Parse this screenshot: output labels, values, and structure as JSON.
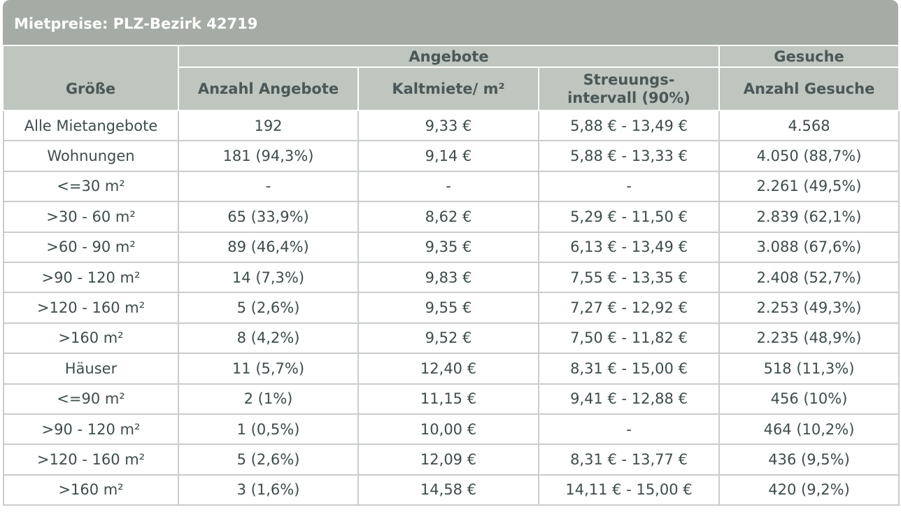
{
  "title": "Mietpreise: PLZ-Bezirk 42719",
  "header": {
    "size": "Größe",
    "groups": [
      "Angebote",
      "Gesuche"
    ],
    "columns": [
      "Anzahl Angebote",
      "Kaltmiete/ m²",
      "Streuungs- intervall (90%)",
      "Anzahl Gesuche"
    ]
  },
  "table": {
    "rows": [
      [
        "Alle Mietangebote",
        "192",
        "9,33 €",
        "5,88 € - 13,49 €",
        "4.568"
      ],
      [
        "Wohnungen",
        "181 (94,3%)",
        "9,14 €",
        "5,88 € - 13,33 €",
        "4.050 (88,7%)"
      ],
      [
        "<=30 m²",
        "-",
        "-",
        "-",
        "2.261 (49,5%)"
      ],
      [
        ">30 - 60 m²",
        "65 (33,9%)",
        "8,62 €",
        "5,29 € - 11,50 €",
        "2.839 (62,1%)"
      ],
      [
        ">60 - 90 m²",
        "89 (46,4%)",
        "9,35 €",
        "6,13 € - 13,49 €",
        "3.088 (67,6%)"
      ],
      [
        ">90 - 120 m²",
        "14 (7,3%)",
        "9,83 €",
        "7,55 € - 13,35 €",
        "2.408 (52,7%)"
      ],
      [
        ">120 - 160 m²",
        "5 (2,6%)",
        "9,55 €",
        "7,27 € - 12,92 €",
        "2.253 (49,3%)"
      ],
      [
        ">160 m²",
        "8 (4,2%)",
        "9,52 €",
        "7,50 € - 11,82 €",
        "2.235 (48,9%)"
      ],
      [
        "Häuser",
        "11 (5,7%)",
        "12,40 €",
        "8,31 € - 15,00 €",
        "518 (11,3%)"
      ],
      [
        "<=90 m²",
        "2 (1%)",
        "11,15 €",
        "9,41 € - 12,88 €",
        "456 (10%)"
      ],
      [
        ">90 - 120 m²",
        "1 (0,5%)",
        "10,00 €",
        "-",
        "464 (10,2%)"
      ],
      [
        ">120 - 160 m²",
        "5 (2,6%)",
        "12,09 €",
        "8,31 € - 13,77 €",
        "436 (9,5%)"
      ],
      [
        ">160 m²",
        "3 (1,6%)",
        "14,58 €",
        "14,11 € - 15,00 €",
        "420 (9,2%)"
      ]
    ]
  }
}
